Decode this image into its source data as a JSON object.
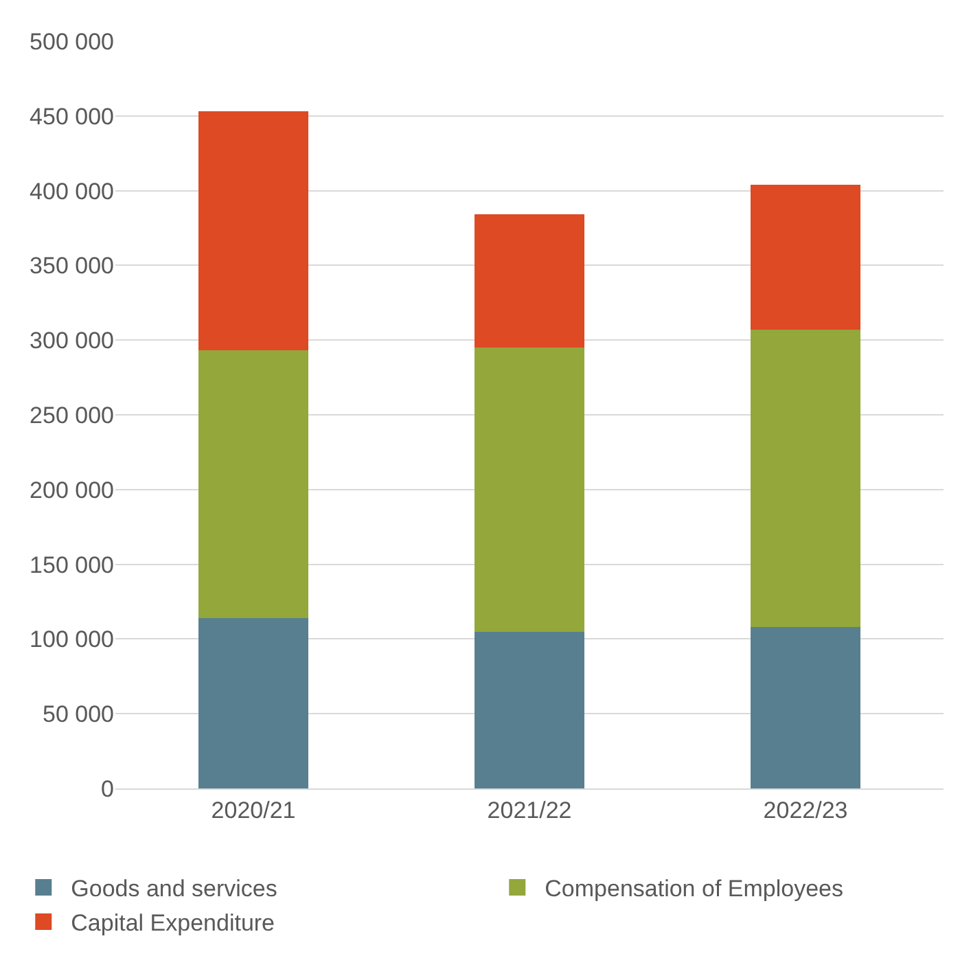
{
  "chart_data": {
    "type": "bar",
    "stacked": true,
    "categories": [
      "2020/21",
      "2021/22",
      "2022/23"
    ],
    "series": [
      {
        "name": "Goods and services",
        "color": "#587f8f",
        "values": [
          114000,
          105000,
          108000
        ]
      },
      {
        "name": "Compensation of Employees",
        "color": "#93a73b",
        "values": [
          179000,
          190000,
          199000
        ]
      },
      {
        "name": "Capital Expenditure",
        "color": "#dd4a24",
        "values": [
          160000,
          89000,
          97000
        ]
      }
    ],
    "ylim": [
      0,
      500000
    ],
    "yticks": [
      0,
      {
        "value": 50000,
        "label": "50 000"
      },
      {
        "value": 100000,
        "label": "100 000"
      },
      {
        "value": 150000,
        "label": "150 000"
      },
      {
        "value": 200000,
        "label": "200 000"
      },
      {
        "value": 250000,
        "label": "250 000"
      },
      {
        "value": 300000,
        "label": "300 000"
      },
      {
        "value": 350000,
        "label": "350 000"
      },
      {
        "value": 400000,
        "label": "400 000"
      },
      {
        "value": 450000,
        "label": "450 000"
      },
      {
        "value": 500000,
        "label": "500 000"
      }
    ],
    "grid": "y",
    "legend": "bottom"
  }
}
